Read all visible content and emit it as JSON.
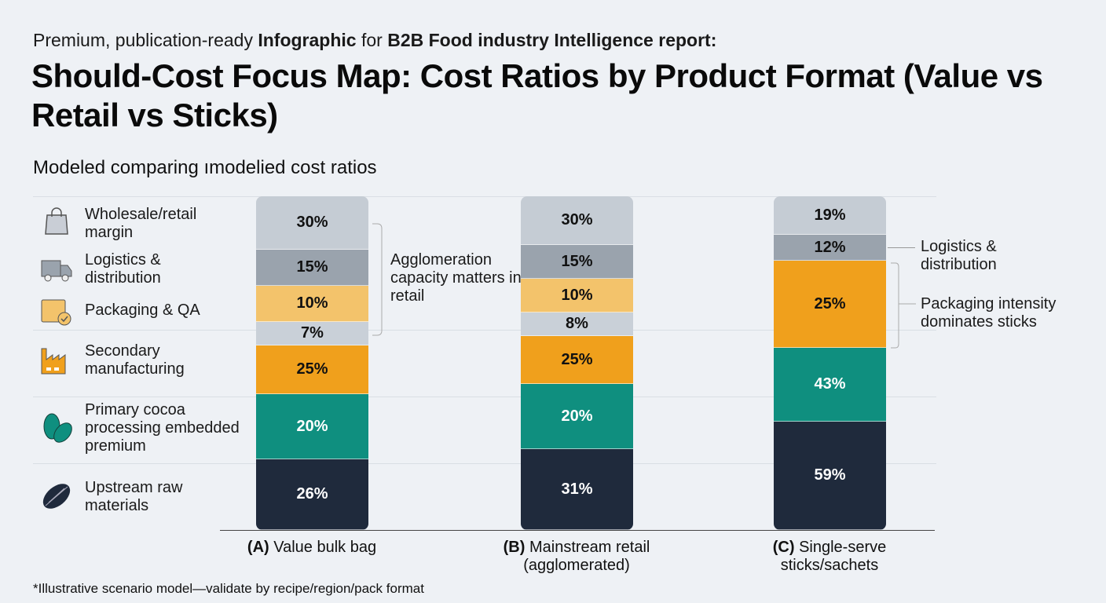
{
  "header": {
    "pre_a": "Premium, publication-ready ",
    "pre_b": "Infographic",
    "pre_c": " for ",
    "pre_d": "B2B Food industry Intelligence report:",
    "title": "Should-Cost Focus Map: Cost Ratios by Product Format (Value vs Retail vs Sticks)",
    "subtitle": "Modeled comparing ımodelied cost ratios"
  },
  "legend": [
    {
      "label": "Wholesale/retail margin",
      "icon": "shopping-bag-icon"
    },
    {
      "label": "Logistics & distribution",
      "icon": "truck-icon"
    },
    {
      "label": "Packaging & QA",
      "icon": "package-check-icon"
    },
    {
      "label": "Secondary manufacturing",
      "icon": "factory-icon"
    },
    {
      "label": "Primary cocoa processing embedded premium",
      "icon": "cocoa-leaves-icon"
    },
    {
      "label": "Upstream raw materials",
      "icon": "cocoa-pod-icon"
    }
  ],
  "chart_data": {
    "type": "bar",
    "stacked": true,
    "title": "Should-Cost Focus Map: Cost Ratios by Product Format (Value vs Retail vs Sticks)",
    "categories": [
      {
        "bold": "(A)",
        "rest": " Value bulk bag"
      },
      {
        "bold": "(B)",
        "rest": " Mainstream retail (agglomerated)"
      },
      {
        "bold": "(C)",
        "rest": " Single-serve sticks/sachets"
      }
    ],
    "series_colors": {
      "margin": "#c5ccd4",
      "logistics": "#9aa3ad",
      "packaging": "#f3c36b",
      "other": "#c9d0d8",
      "secondary": "#f0a01c",
      "primary": "#0f8f7f",
      "upstream": "#1f2a3c"
    },
    "bars": [
      {
        "segments": [
          {
            "s": "margin",
            "v": 30,
            "t": "30%"
          },
          {
            "s": "logistics",
            "v": 15,
            "t": "15%"
          },
          {
            "s": "packaging",
            "v": 10,
            "t": "10%"
          },
          {
            "s": "other",
            "v": 7,
            "t": "7%"
          },
          {
            "s": "secondary",
            "v": 25,
            "t": "25%"
          },
          {
            "s": "primary",
            "v": 20,
            "t": "20%"
          },
          {
            "s": "upstream",
            "v": 26,
            "t": "26%"
          }
        ]
      },
      {
        "segments": [
          {
            "s": "margin",
            "v": 30,
            "t": "30%"
          },
          {
            "s": "logistics",
            "v": 15,
            "t": "15%"
          },
          {
            "s": "packaging",
            "v": 10,
            "t": "10%"
          },
          {
            "s": "other",
            "v": 8,
            "t": "8%"
          },
          {
            "s": "secondary",
            "v": 25,
            "t": "25%"
          },
          {
            "s": "primary",
            "v": 20,
            "t": "20%"
          },
          {
            "s": "upstream",
            "v": 31,
            "t": "31%"
          }
        ]
      },
      {
        "segments": [
          {
            "s": "margin",
            "v": 19,
            "t": "19%"
          },
          {
            "s": "logistics",
            "v": 12,
            "t": "12%"
          },
          {
            "s": "secondary",
            "v": 25,
            "t": "25%"
          },
          {
            "s": "primary",
            "v": 43,
            "t": "43%"
          },
          {
            "s": "upstream",
            "v": 59,
            "t": "59%"
          }
        ]
      }
    ],
    "annotations": [
      "Agglomeration capacity matters in retail",
      "Logistics & distribution",
      "Packaging intensity dominates sticks"
    ]
  },
  "footnote": "*Illustrative scenario model—validate by recipe/region/pack format"
}
